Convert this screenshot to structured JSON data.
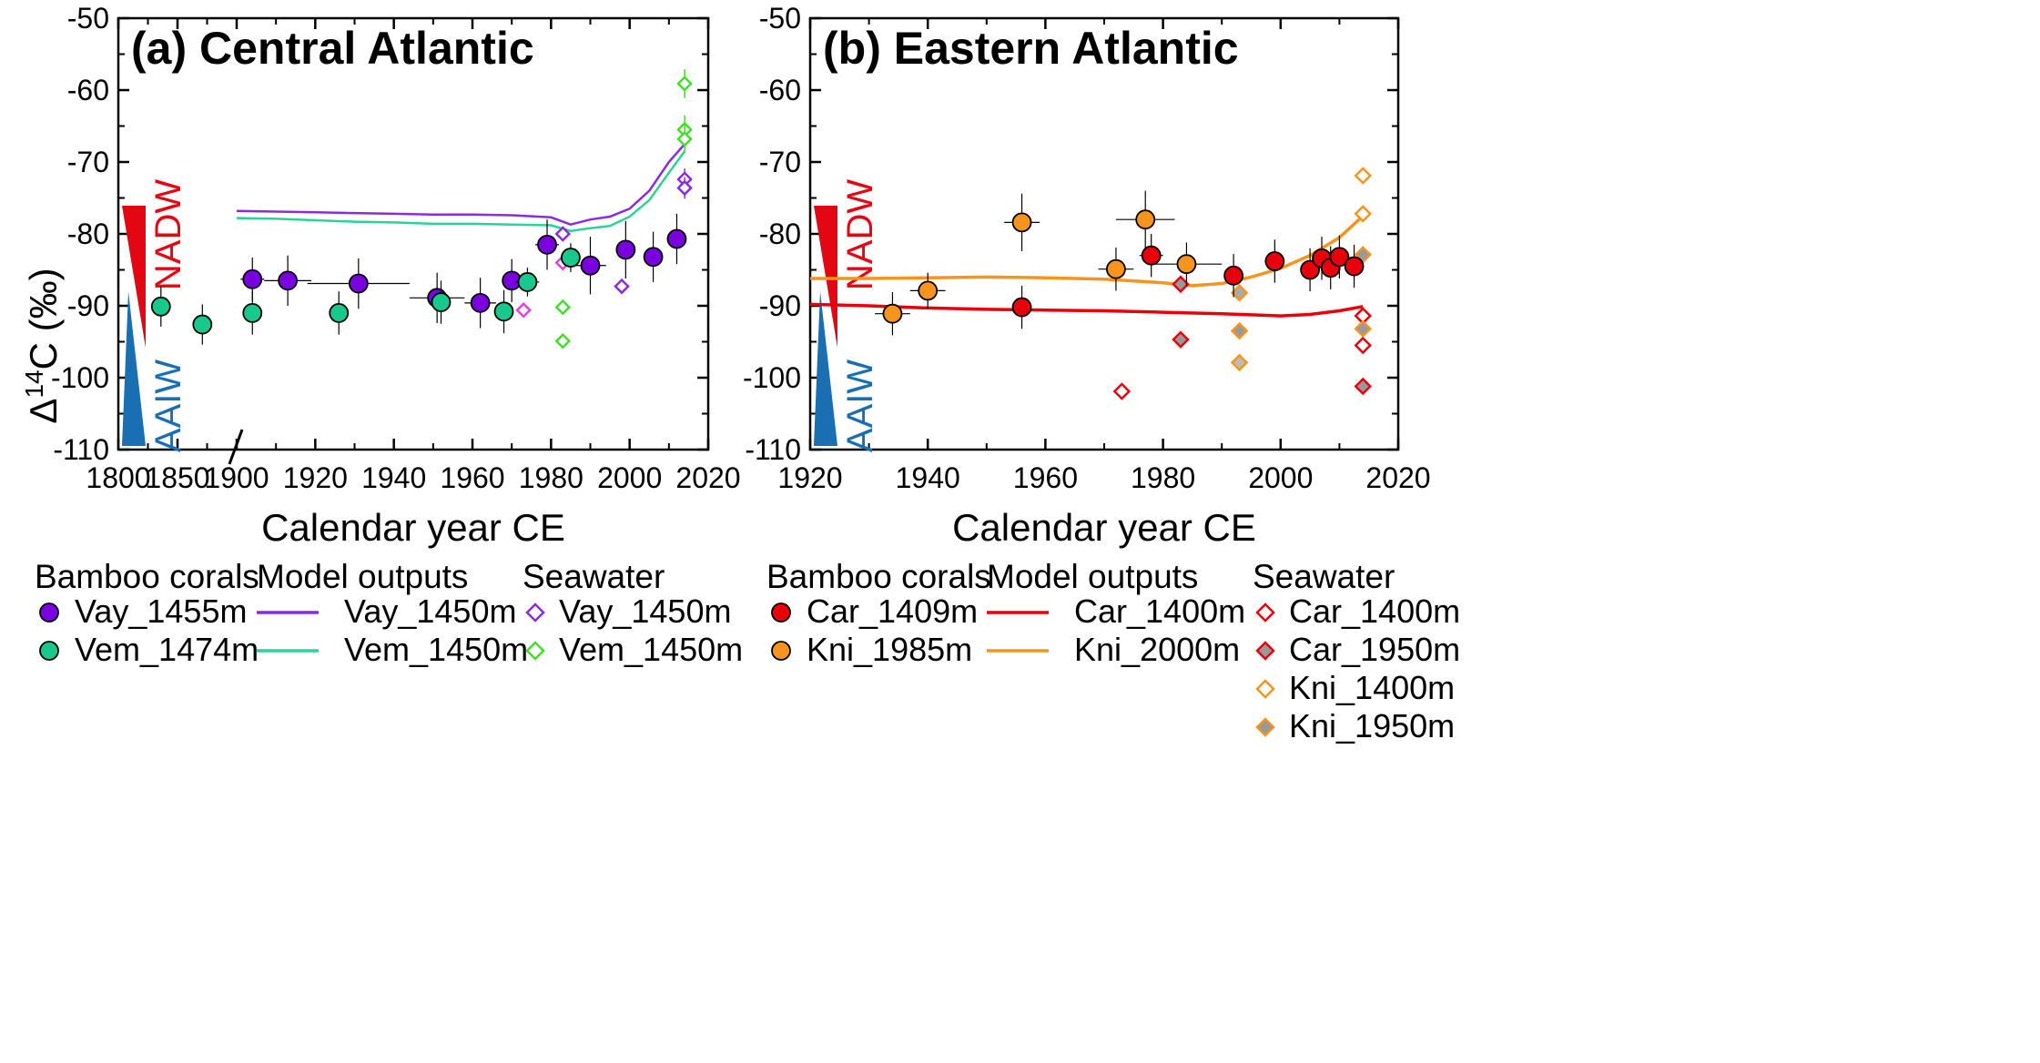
{
  "ylabel_main": "Δ",
  "ylabel_sup": "14",
  "ylabel_rest": "C (‰)",
  "water_masses": {
    "upper": "NADW",
    "lower": "AAIW",
    "upper_color": "#e30613",
    "lower_color": "#1a6fb3"
  },
  "chart_data": [
    {
      "type": "scatter",
      "panel_letter": "(a)",
      "title": "Central Atlantic",
      "xlabel": "Calendar year CE",
      "ylabel": "Δ14C (‰)",
      "ylim": [
        -110,
        -50
      ],
      "yticks": [
        -110,
        -100,
        -90,
        -80,
        -70,
        -60,
        -50
      ],
      "xlim": [
        1800,
        2020
      ],
      "axis_break": true,
      "xticks_left": [
        1800,
        1850,
        1900
      ],
      "xticks_right": [
        1900,
        1920,
        1940,
        1960,
        1980,
        2000,
        2020
      ],
      "series": [
        {
          "name": "Vay_1455m",
          "kind": "coral",
          "color": "#7b00e0",
          "points": [
            {
              "x": 1904,
              "y": -86.3,
              "xerr": 3,
              "yerr": 3.0
            },
            {
              "x": 1913,
              "y": -86.5,
              "xerr": 6,
              "yerr": 3.5
            },
            {
              "x": 1931,
              "y": -86.9,
              "xerr": 13,
              "yerr": 3.5
            },
            {
              "x": 1951,
              "y": -88.9,
              "xerr": 7,
              "yerr": 3.5
            },
            {
              "x": 1962,
              "y": -89.6,
              "xerr": 4,
              "yerr": 3.5
            },
            {
              "x": 1970,
              "y": -86.5,
              "xerr": 2,
              "yerr": 3.0
            },
            {
              "x": 1979,
              "y": -81.5,
              "xerr": 3,
              "yerr": 3.5
            },
            {
              "x": 1990,
              "y": -84.4,
              "xerr": 4,
              "yerr": 4.0
            },
            {
              "x": 1999,
              "y": -82.2,
              "xerr": 2,
              "yerr": 4.0
            },
            {
              "x": 2006,
              "y": -83.2,
              "xerr": 2,
              "yerr": 3.5
            },
            {
              "x": 2012,
              "y": -80.7,
              "xerr": 2,
              "yerr": 3.5
            }
          ]
        },
        {
          "name": "Vem_1474m",
          "kind": "coral",
          "color": "#19c88c",
          "points": [
            {
              "x": 1836,
              "y": -90.1,
              "xerr": 1,
              "yerr": 2.8
            },
            {
              "x": 1871,
              "y": -92.6,
              "xerr": 1,
              "yerr": 2.8
            },
            {
              "x": 1904,
              "y": -91.0,
              "xerr": 1,
              "yerr": 3.0
            },
            {
              "x": 1926,
              "y": -91.0,
              "xerr": 1,
              "yerr": 3.0
            },
            {
              "x": 1952,
              "y": -89.5,
              "xerr": 1,
              "yerr": 3.0
            },
            {
              "x": 1968,
              "y": -90.8,
              "xerr": 1,
              "yerr": 3.0
            },
            {
              "x": 1974,
              "y": -86.7,
              "xerr": 3,
              "yerr": 2.0
            },
            {
              "x": 1985,
              "y": -83.3,
              "xerr": 2,
              "yerr": 2.0
            }
          ]
        },
        {
          "name": "Vay_1450m",
          "kind": "model",
          "color": "#8a2be2",
          "x": [
            1900,
            1910,
            1920,
            1930,
            1940,
            1950,
            1960,
            1970,
            1980,
            1985,
            1990,
            1995,
            2000,
            2005,
            2010,
            2014
          ],
          "y": [
            -76.8,
            -76.9,
            -77.0,
            -77.1,
            -77.2,
            -77.3,
            -77.3,
            -77.4,
            -77.7,
            -78.7,
            -78.0,
            -77.6,
            -76.5,
            -74.0,
            -70.0,
            -67.5
          ]
        },
        {
          "name": "Vem_1450m",
          "kind": "model",
          "color": "#2ad39a",
          "x": [
            1900,
            1910,
            1920,
            1930,
            1940,
            1950,
            1960,
            1970,
            1980,
            1985,
            1990,
            1995,
            2000,
            2005,
            2010,
            2014
          ],
          "y": [
            -77.8,
            -77.9,
            -78.1,
            -78.3,
            -78.4,
            -78.6,
            -78.6,
            -78.7,
            -78.8,
            -79.6,
            -79.2,
            -78.9,
            -77.6,
            -75.3,
            -71.5,
            -68.5
          ]
        },
        {
          "name": "Vay_1450m",
          "kind": "seawater",
          "color": "#8a2be2",
          "points": [
            {
              "x": 1973,
              "y": -90.6,
              "color": "#e040e0"
            },
            {
              "x": 1983,
              "y": -80.0
            },
            {
              "x": 1983,
              "y": -84.0,
              "color": "#e040e0"
            },
            {
              "x": 1998,
              "y": -87.3
            },
            {
              "x": 2014,
              "y": -72.4,
              "yerr": 1.5
            },
            {
              "x": 2014,
              "y": -73.6,
              "yerr": 1.5
            }
          ]
        },
        {
          "name": "Vem_1450m",
          "kind": "seawater",
          "color": "#44dd2a",
          "points": [
            {
              "x": 1983,
              "y": -90.2
            },
            {
              "x": 1983,
              "y": -94.9
            },
            {
              "x": 2014,
              "y": -59.1,
              "yerr": 2.0
            },
            {
              "x": 2014,
              "y": -65.5,
              "yerr": 2.0
            },
            {
              "x": 2014,
              "y": -66.8,
              "yerr": 2.0
            }
          ]
        }
      ]
    },
    {
      "type": "scatter",
      "panel_letter": "(b)",
      "title": "Eastern Atlantic",
      "xlabel": "Calendar year CE",
      "ylabel": "Δ14C (‰)",
      "ylim": [
        -110,
        -50
      ],
      "yticks": [
        -110,
        -100,
        -90,
        -80,
        -70,
        -60,
        -50
      ],
      "xlim": [
        1920,
        2020
      ],
      "xticks": [
        1920,
        1940,
        1960,
        1980,
        2000,
        2020
      ],
      "series": [
        {
          "name": "Car_1409m",
          "kind": "coral",
          "color": "#e8000b",
          "points": [
            {
              "x": 1956,
              "y": -90.2,
              "xerr": 1,
              "yerr": 3.0
            },
            {
              "x": 1978,
              "y": -83.0,
              "xerr": 2,
              "yerr": 3.0
            },
            {
              "x": 1992,
              "y": -85.8,
              "xerr": 1,
              "yerr": 3.0
            },
            {
              "x": 1999,
              "y": -83.8,
              "xerr": 1,
              "yerr": 3.0
            },
            {
              "x": 2005,
              "y": -85.0,
              "xerr": 1,
              "yerr": 3.0
            },
            {
              "x": 2007,
              "y": -83.4,
              "xerr": 1,
              "yerr": 3.0
            },
            {
              "x": 2008.5,
              "y": -84.7,
              "xerr": 1,
              "yerr": 3.0
            },
            {
              "x": 2010,
              "y": -83.2,
              "xerr": 1,
              "yerr": 3.0
            },
            {
              "x": 2012.5,
              "y": -84.5,
              "xerr": 1,
              "yerr": 3.0
            }
          ]
        },
        {
          "name": "Kni_1985m",
          "kind": "coral",
          "color": "#f7941d",
          "points": [
            {
              "x": 1934,
              "y": -91.1,
              "xerr": 3,
              "yerr": 3.0
            },
            {
              "x": 1940,
              "y": -87.9,
              "xerr": 3,
              "yerr": 2.5
            },
            {
              "x": 1956,
              "y": -78.4,
              "xerr": 3,
              "yerr": 4.0
            },
            {
              "x": 1972,
              "y": -84.9,
              "xerr": 3,
              "yerr": 3.0
            },
            {
              "x": 1977,
              "y": -78.0,
              "xerr": 5,
              "yerr": 4.0
            },
            {
              "x": 1984,
              "y": -84.2,
              "xerr": 6,
              "yerr": 3.0
            }
          ]
        },
        {
          "name": "Car_1400m",
          "kind": "model",
          "color": "#e8000b",
          "x": [
            1920,
            1930,
            1940,
            1950,
            1960,
            1970,
            1980,
            1990,
            2000,
            2005,
            2010,
            2014
          ],
          "y": [
            -89.8,
            -90.0,
            -90.3,
            -90.5,
            -90.6,
            -90.7,
            -90.9,
            -91.1,
            -91.4,
            -91.2,
            -90.7,
            -90.1
          ]
        },
        {
          "name": "Kni_2000m",
          "kind": "model",
          "color": "#f7941d",
          "x": [
            1920,
            1930,
            1940,
            1950,
            1960,
            1970,
            1980,
            1985,
            1990,
            1995,
            2000,
            2005,
            2010,
            2014
          ],
          "y": [
            -86.2,
            -86.2,
            -86.1,
            -86.0,
            -86.1,
            -86.3,
            -86.8,
            -87.2,
            -86.9,
            -86.0,
            -84.8,
            -83.0,
            -80.5,
            -77.5
          ]
        },
        {
          "name": "Car_1400m",
          "kind": "seawater",
          "color": "#e8000b",
          "fill": "#ffffff",
          "points": [
            {
              "x": 1973,
              "y": -101.9
            },
            {
              "x": 2014,
              "y": -91.4
            },
            {
              "x": 2014,
              "y": -95.5
            }
          ]
        },
        {
          "name": "Car_1950m",
          "kind": "seawater",
          "color": "#e8000b",
          "fill": "#999999",
          "points": [
            {
              "x": 1983,
              "y": -87.0
            },
            {
              "x": 1983,
              "y": -94.7
            },
            {
              "x": 2014,
              "y": -101.2
            }
          ]
        },
        {
          "name": "Kni_1400m",
          "kind": "seawater",
          "color": "#f7941d",
          "fill": "#ffffff",
          "points": [
            {
              "x": 1993,
              "y": -88.2,
              "fill": "#aaaaaa"
            },
            {
              "x": 1993,
              "y": -97.9,
              "fill": "#bbbbbb"
            },
            {
              "x": 2014,
              "y": -77.2
            },
            {
              "x": 2014,
              "y": -71.9
            }
          ]
        },
        {
          "name": "Kni_1950m",
          "kind": "seawater",
          "color": "#f7941d",
          "fill": "#999999",
          "points": [
            {
              "x": 1993,
              "y": -93.5
            },
            {
              "x": 2014,
              "y": -82.9
            },
            {
              "x": 2014,
              "y": -93.2
            }
          ]
        }
      ]
    }
  ],
  "legend": {
    "a": {
      "groups": [
        {
          "title": "Bamboo corals",
          "items": [
            {
              "label": "Vay_1455m",
              "symbol": "circle",
              "color": "#7b00e0"
            },
            {
              "label": "Vem_1474m",
              "symbol": "circle",
              "color": "#19c88c"
            }
          ]
        },
        {
          "title": "Model outputs",
          "items": [
            {
              "label": "Vay_1450m",
              "symbol": "line",
              "color": "#8a2be2"
            },
            {
              "label": "Vem_1450m",
              "symbol": "line",
              "color": "#2ad39a"
            }
          ]
        },
        {
          "title": "Seawater",
          "items": [
            {
              "label": "Vay_1450m",
              "symbol": "diamond-open",
              "color": "#8a2be2"
            },
            {
              "label": "Vem_1450m",
              "symbol": "diamond-open",
              "color": "#44dd2a"
            }
          ]
        }
      ]
    },
    "b": {
      "groups": [
        {
          "title": "Bamboo corals",
          "items": [
            {
              "label": "Car_1409m",
              "symbol": "circle",
              "color": "#e8000b"
            },
            {
              "label": "Kni_1985m",
              "symbol": "circle",
              "color": "#f7941d"
            }
          ]
        },
        {
          "title": "Model outputs",
          "items": [
            {
              "label": "Car_1400m",
              "symbol": "line",
              "color": "#e8000b"
            },
            {
              "label": "Kni_2000m",
              "symbol": "line",
              "color": "#f7941d"
            }
          ]
        },
        {
          "title": "Seawater",
          "items": [
            {
              "label": "Car_1400m",
              "symbol": "diamond-open",
              "color": "#e8000b"
            },
            {
              "label": "Car_1950m",
              "symbol": "diamond-filled",
              "color": "#e8000b",
              "fill": "#999999"
            },
            {
              "label": "Kni_1400m",
              "symbol": "diamond-open",
              "color": "#f7941d"
            },
            {
              "label": "Kni_1950m",
              "symbol": "diamond-filled",
              "color": "#f7941d",
              "fill": "#999999"
            }
          ]
        }
      ]
    }
  }
}
